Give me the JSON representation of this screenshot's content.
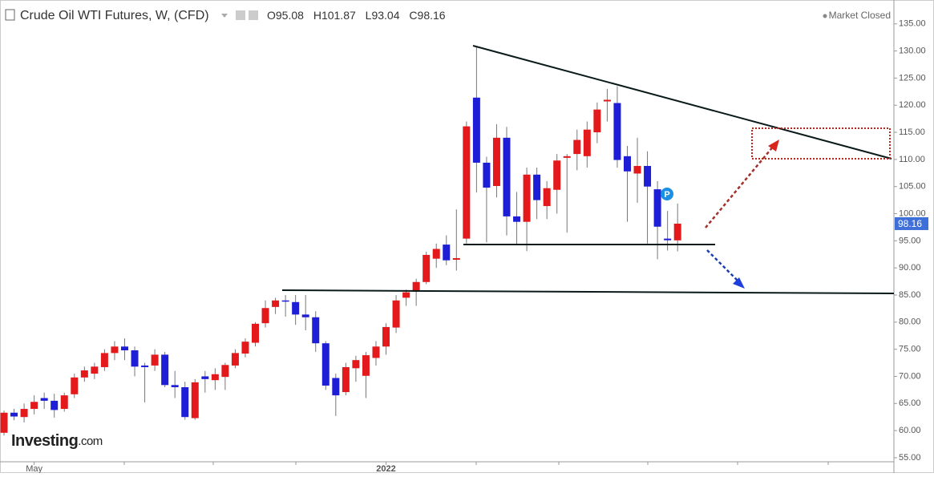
{
  "header": {
    "title": "Crude Oil WTI Futures, W, (CFD)",
    "ohlc_labels": [
      "O",
      "H",
      "L",
      "C"
    ],
    "status": "Market Closed"
  },
  "logo": {
    "brand": "Investing",
    "suffix": ".com"
  },
  "marker": "P",
  "chart_data": {
    "type": "candlestick",
    "categories": [
      null,
      null,
      null,
      "May",
      null,
      null,
      null,
      null,
      null,
      null,
      null,
      null,
      null,
      null,
      null,
      null,
      null,
      null,
      null,
      null,
      null,
      null,
      null,
      null,
      null,
      null,
      null,
      null,
      null,
      null,
      null,
      null,
      null,
      null,
      null,
      null,
      null,
      null,
      "2022",
      null,
      null,
      null,
      null,
      null,
      null,
      null,
      null,
      null,
      null,
      null,
      null,
      null,
      null,
      null,
      null,
      null,
      null,
      null,
      null,
      null,
      null,
      null,
      null,
      null,
      null,
      null,
      null,
      null
    ],
    "open": [
      59.6,
      63.3,
      62.5,
      64,
      66,
      65.5,
      64,
      66.7,
      69.8,
      70.5,
      71.7,
      74.3,
      75.5,
      74.8,
      72,
      72,
      74,
      68.4,
      68,
      62.3,
      70,
      69.3,
      69.9,
      72,
      74.2,
      76.2,
      79.8,
      82.8,
      84,
      83.7,
      81.4,
      80.9,
      76.1,
      69.7,
      67.1,
      71.5,
      70.1,
      73.4,
      75.5,
      79,
      84.5,
      85.6,
      87.4,
      91.7,
      94.3,
      91.5,
      95.4,
      121.4,
      109.4,
      105.1,
      114,
      99.5,
      98.5,
      107.2,
      101.4,
      104.4,
      110.3,
      111,
      110.6,
      115,
      120.7,
      120.4,
      110.6,
      107.4,
      108.8,
      104.5,
      95.4,
      95.08
    ],
    "high": [
      63.7,
      64,
      65,
      66.5,
      67,
      66.8,
      67,
      70.5,
      71.8,
      72.5,
      75,
      76.5,
      77,
      75.5,
      72.5,
      75,
      74.5,
      71,
      69,
      69.5,
      71,
      71.5,
      72.5,
      75,
      77,
      80,
      84,
      84.5,
      85,
      85,
      85,
      82,
      76.5,
      70.5,
      72.5,
      73.8,
      74.5,
      76.5,
      79.8,
      85,
      86,
      88,
      93,
      94.5,
      96,
      100.8,
      117,
      130.8,
      110.5,
      116.5,
      116,
      104,
      108.5,
      108.5,
      106,
      111,
      111,
      115.5,
      117,
      120.5,
      123,
      123.5,
      112.5,
      114,
      111.5,
      106,
      100.5,
      101.87
    ],
    "low": [
      59.1,
      61.9,
      61.5,
      63,
      64,
      62.4,
      63.5,
      66,
      69,
      69.5,
      71,
      73,
      73,
      70,
      65.2,
      71,
      68,
      66,
      62,
      62,
      67,
      67.5,
      67.5,
      71.5,
      73.5,
      75.5,
      79,
      81.5,
      81,
      79.5,
      78.5,
      74.5,
      67.5,
      62.7,
      66.5,
      69,
      66,
      72,
      74,
      78,
      83,
      83,
      87,
      90,
      90.5,
      89.5,
      94.5,
      103.9,
      94.7,
      103,
      96,
      94.4,
      93.1,
      99,
      99,
      100,
      96.5,
      108,
      108.5,
      113,
      117,
      108.5,
      98.5,
      102,
      94.5,
      91.6,
      93.2,
      93.04
    ],
    "close": [
      63.3,
      62.6,
      64,
      65.3,
      65.5,
      63.8,
      66.5,
      69.8,
      71.1,
      71.8,
      74.3,
      75.5,
      74.8,
      71.8,
      71.7,
      74,
      68.4,
      68,
      62.5,
      68.9,
      69.5,
      70.4,
      72.1,
      74.3,
      76.4,
      79.7,
      82.6,
      84,
      83.8,
      81.4,
      80.9,
      76.1,
      68.3,
      66.5,
      71.7,
      73,
      73.9,
      75.5,
      79.1,
      84,
      85.5,
      87.4,
      92.4,
      93.5,
      91.4,
      91.8,
      116.1,
      109.4,
      104.8,
      114,
      99.5,
      98.5,
      107.2,
      102.5,
      104.7,
      109.8,
      110.6,
      113.6,
      115.5,
      119.2,
      121,
      109.9,
      107.8,
      108.8,
      105,
      97.6,
      95.1,
      98.16
    ],
    "up_color": "#e3191b",
    "down_color": "#1e1ed6",
    "ylim": [
      54.4,
      139.4
    ],
    "yticks": [
      {
        "value": 55,
        "label": "55.00"
      },
      {
        "value": 60,
        "label": "60.00"
      },
      {
        "value": 65,
        "label": "65.00"
      },
      {
        "value": 70,
        "label": "70.00"
      },
      {
        "value": 75,
        "label": "75.00"
      },
      {
        "value": 80,
        "label": "80.00"
      },
      {
        "value": 85,
        "label": "85.00"
      },
      {
        "value": 90,
        "label": "90.00"
      },
      {
        "value": 95,
        "label": "95.00"
      },
      {
        "value": 100,
        "label": "100.00"
      },
      {
        "value": 105,
        "label": "105.00"
      },
      {
        "value": 110,
        "label": "110.00"
      },
      {
        "value": 115,
        "label": "115.00"
      },
      {
        "value": 120,
        "label": "120.00"
      },
      {
        "value": 125,
        "label": "125.00"
      },
      {
        "value": 130,
        "label": "130.00"
      },
      {
        "value": 135,
        "label": "135.00"
      }
    ]
  }
}
